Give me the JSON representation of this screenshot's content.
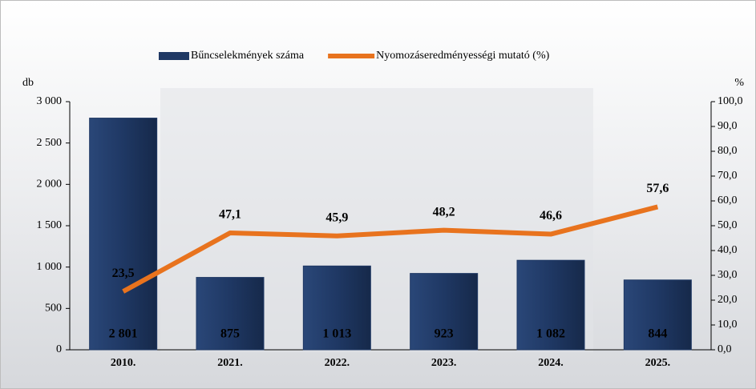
{
  "chart_data": {
    "type": "bar",
    "categories": [
      "2010.",
      "2021.",
      "2022.",
      "2023.",
      "2024.",
      "2025."
    ],
    "series": [
      {
        "name": "Bűncselekmények száma",
        "type": "bar",
        "color": "#1f3864",
        "values": [
          2801,
          875,
          1013,
          923,
          1082,
          844
        ],
        "value_labels": [
          "2 801",
          "875",
          "1 013",
          "923",
          "1 082",
          "844"
        ]
      },
      {
        "name": "Nyomozáseredményességi mutató (%)",
        "type": "line",
        "axis": "y2",
        "color": "#e8731e",
        "values": [
          23.5,
          47.1,
          45.9,
          48.2,
          46.6,
          57.6
        ],
        "value_labels": [
          "23,5",
          "47,1",
          "45,9",
          "48,2",
          "46,6",
          "57,6"
        ]
      }
    ],
    "y_label": "db",
    "y2_label": "%",
    "ylim": [
      0,
      3000
    ],
    "yticks": [
      0,
      500,
      {
        "value": 1000,
        "label": "1 000"
      },
      {
        "value": 1500,
        "label": "1 500"
      },
      {
        "value": 2000,
        "label": "2 000"
      },
      {
        "value": 2500,
        "label": "2 500"
      },
      {
        "value": 3000,
        "label": "3 000"
      }
    ],
    "y2lim": [
      0,
      100
    ],
    "y2ticks": [
      {
        "value": 0,
        "label": "0,0"
      },
      {
        "value": 10,
        "label": "10,0"
      },
      {
        "value": 20,
        "label": "20,0"
      },
      {
        "value": 30,
        "label": "30,0"
      },
      {
        "value": 40,
        "label": "40,0"
      },
      {
        "value": 50,
        "label": "50,0"
      },
      {
        "value": 60,
        "label": "60,0"
      },
      {
        "value": 70,
        "label": "70,0"
      },
      {
        "value": 80,
        "label": "80,0"
      },
      {
        "value": 90,
        "label": "90,0"
      },
      {
        "value": 100,
        "label": "100,0"
      }
    ],
    "legend": "top"
  }
}
